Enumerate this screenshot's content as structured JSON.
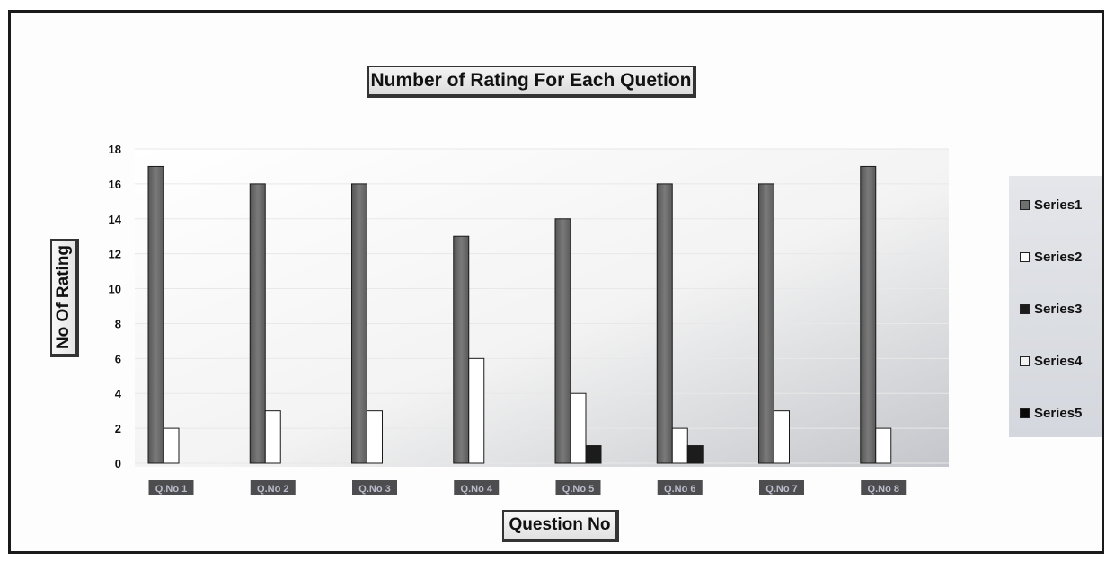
{
  "chart_data": {
    "type": "bar",
    "title": "Number of Rating For Each Quetion",
    "xlabel": "Question No",
    "ylabel": "No Of Rating",
    "categories": [
      "Q.No 1",
      "Q.No 2",
      "Q.No 3",
      "Q.No 4",
      "Q.No 5",
      "Q.No 6",
      "Q.No 7",
      "Q.No 8"
    ],
    "series": [
      {
        "name": "Series1",
        "values": [
          17,
          16,
          16,
          13,
          14,
          16,
          16,
          17
        ],
        "color": "#6f6f6f"
      },
      {
        "name": "Series2",
        "values": [
          2,
          3,
          3,
          6,
          4,
          2,
          3,
          2
        ],
        "color": "#ffffff"
      },
      {
        "name": "Series3",
        "values": [
          0,
          0,
          0,
          0,
          1,
          1,
          0,
          0
        ],
        "color": "#1c1c1c"
      },
      {
        "name": "Series4",
        "values": [
          0,
          0,
          0,
          0,
          0,
          0,
          0,
          0
        ],
        "color": "#f2f2f2"
      },
      {
        "name": "Series5",
        "values": [
          0,
          0,
          0,
          0,
          0,
          0,
          0,
          0
        ],
        "color": "#0a0a0a"
      }
    ],
    "ylim": [
      0,
      18
    ],
    "yticks": [
      0,
      2,
      4,
      6,
      8,
      10,
      12,
      14,
      16,
      18
    ],
    "grid": true,
    "legend_position": "right"
  }
}
